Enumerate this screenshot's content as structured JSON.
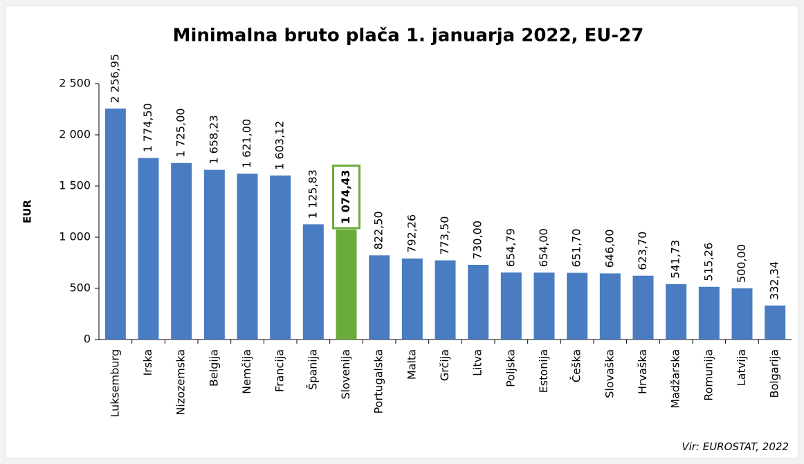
{
  "chart_data": {
    "type": "bar",
    "title": "Minimalna bruto plača 1. januarja 2022, EU-27",
    "y_label": "EUR",
    "source": "Vir: EUROSTAT, 2022",
    "categories": [
      "Luksemburg",
      "Irska",
      "Nizozemska",
      "Belgija",
      "Nemčija",
      "Francija",
      "Španija",
      "Slovenija",
      "Portugalska",
      "Malta",
      "Grčija",
      "Litva",
      "Poljska",
      "Estonija",
      "Češka",
      "Slovaška",
      "Hrvaška",
      "Madžarska",
      "Romunija",
      "Latvija",
      "Bolgarija"
    ],
    "values": [
      2256.95,
      1774.5,
      1725,
      1658.23,
      1621,
      1603.12,
      1125.83,
      1074.43,
      822.5,
      792.26,
      773.5,
      730,
      654.79,
      654,
      651.7,
      646,
      623.7,
      541.73,
      515.26,
      500,
      332.34
    ],
    "value_labels": [
      "2 256,95",
      "1 774,50",
      "1 725,00",
      "1 658,23",
      "1 621,00",
      "1 603,12",
      "1 125,83",
      "1 074,43",
      "822,50",
      "792,26",
      "773,50",
      "730,00",
      "654,79",
      "654,00",
      "651,70",
      "646,00",
      "623,70",
      "541,73",
      "515,26",
      "500,00",
      "332,34"
    ],
    "colors": [
      "#4a7cc2",
      "#4a7cc2",
      "#4a7cc2",
      "#4a7cc2",
      "#4a7cc2",
      "#4a7cc2",
      "#4a7cc2",
      "#6aab3c",
      "#4a7cc2",
      "#4a7cc2",
      "#4a7cc2",
      "#4a7cc2",
      "#4a7cc2",
      "#4a7cc2",
      "#4a7cc2",
      "#4a7cc2",
      "#4a7cc2",
      "#4a7cc2",
      "#4a7cc2",
      "#4a7cc2",
      "#4a7cc2"
    ],
    "ylim": [
      0,
      2500
    ],
    "yticks": [
      0,
      500,
      {
        "value": 1000,
        "label": "1 000"
      },
      {
        "value": 1500,
        "label": "1 500"
      },
      {
        "value": 2000,
        "label": "2 000"
      },
      {
        "value": 2500,
        "label": "2 500"
      }
    ],
    "grid": false
  }
}
